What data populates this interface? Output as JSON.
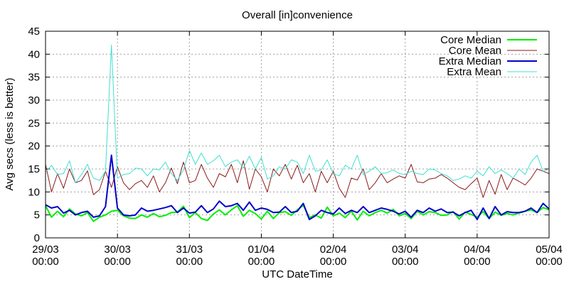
{
  "chart_data": {
    "type": "line",
    "title": "Overall [in]convenience",
    "xlabel": "UTC DateTime",
    "ylabel": "Avg secs (less is better)",
    "ylim": [
      0,
      45
    ],
    "xlim": [
      "2023-03-29T00:00",
      "2023-04-05T00:00"
    ],
    "grid": true,
    "legend_position": "top-right",
    "x_ticks": [
      {
        "line1": "29/03",
        "line2": "00:00"
      },
      {
        "line1": "30/03",
        "line2": "00:00"
      },
      {
        "line1": "31/03",
        "line2": "00:00"
      },
      {
        "line1": "01/04",
        "line2": "00:00"
      },
      {
        "line1": "02/04",
        "line2": "00:00"
      },
      {
        "line1": "03/04",
        "line2": "00:00"
      },
      {
        "line1": "04/04",
        "line2": "00:00"
      },
      {
        "line1": "05/04",
        "line2": "00:00"
      }
    ],
    "y_ticks": [
      "0",
      "5",
      "10",
      "15",
      "20",
      "25",
      "30",
      "35",
      "40",
      "45"
    ],
    "x": [
      "2023-03-29T00:00",
      "2023-03-29T02:00",
      "2023-03-29T04:00",
      "2023-03-29T06:00",
      "2023-03-29T08:00",
      "2023-03-29T10:00",
      "2023-03-29T12:00",
      "2023-03-29T14:00",
      "2023-03-29T16:00",
      "2023-03-29T18:00",
      "2023-03-29T20:00",
      "2023-03-29T22:00",
      "2023-03-30T00:00",
      "2023-03-30T02:00",
      "2023-03-30T04:00",
      "2023-03-30T06:00",
      "2023-03-30T08:00",
      "2023-03-30T10:00",
      "2023-03-30T12:00",
      "2023-03-30T14:00",
      "2023-03-30T16:00",
      "2023-03-30T18:00",
      "2023-03-30T20:00",
      "2023-03-30T22:00",
      "2023-03-31T00:00",
      "2023-03-31T02:00",
      "2023-03-31T04:00",
      "2023-03-31T06:00",
      "2023-03-31T08:00",
      "2023-03-31T10:00",
      "2023-03-31T12:00",
      "2023-03-31T14:00",
      "2023-03-31T16:00",
      "2023-03-31T18:00",
      "2023-03-31T20:00",
      "2023-03-31T22:00",
      "2023-04-01T00:00",
      "2023-04-01T02:00",
      "2023-04-01T04:00",
      "2023-04-01T06:00",
      "2023-04-01T08:00",
      "2023-04-01T10:00",
      "2023-04-01T12:00",
      "2023-04-01T14:00",
      "2023-04-01T16:00",
      "2023-04-01T18:00",
      "2023-04-01T20:00",
      "2023-04-01T22:00",
      "2023-04-02T00:00",
      "2023-04-02T02:00",
      "2023-04-02T04:00",
      "2023-04-02T06:00",
      "2023-04-02T08:00",
      "2023-04-02T10:00",
      "2023-04-02T12:00",
      "2023-04-02T14:00",
      "2023-04-02T16:00",
      "2023-04-02T18:00",
      "2023-04-02T20:00",
      "2023-04-02T22:00",
      "2023-04-03T00:00",
      "2023-04-03T02:00",
      "2023-04-03T04:00",
      "2023-04-03T06:00",
      "2023-04-03T08:00",
      "2023-04-03T10:00",
      "2023-04-03T12:00",
      "2023-04-03T14:00",
      "2023-04-03T16:00",
      "2023-04-03T18:00",
      "2023-04-03T20:00",
      "2023-04-03T22:00",
      "2023-04-04T00:00",
      "2023-04-04T02:00",
      "2023-04-04T04:00",
      "2023-04-04T06:00",
      "2023-04-04T08:00",
      "2023-04-04T10:00",
      "2023-04-04T12:00",
      "2023-04-04T14:00",
      "2023-04-04T16:00",
      "2023-04-04T18:00",
      "2023-04-04T20:00",
      "2023-04-04T22:00",
      "2023-04-05T00:00"
    ],
    "series": [
      {
        "name": "Core Median",
        "color": "#00ee00",
        "values": [
          7.0,
          4.5,
          5.8,
          4.6,
          6.3,
          5.2,
          4.8,
          5.5,
          3.6,
          4.5,
          5.0,
          5.8,
          6.0,
          4.8,
          4.3,
          4.2,
          5.0,
          4.5,
          5.3,
          4.6,
          4.9,
          5.5,
          5.6,
          6.9,
          4.4,
          5.5,
          4.2,
          3.8,
          5.2,
          6.1,
          5.0,
          6.1,
          7.0,
          4.7,
          6.0,
          5.3,
          4.1,
          5.8,
          4.2,
          5.5,
          5.7,
          4.9,
          6.1,
          7.1,
          4.4,
          5.0,
          4.3,
          6.7,
          4.8,
          5.4,
          4.4,
          5.8,
          3.9,
          5.8,
          4.8,
          5.5,
          6.0,
          5.4,
          6.2,
          4.8,
          5.3,
          4.2,
          5.8,
          5.0,
          5.7,
          5.5,
          4.9,
          5.0,
          5.7,
          4.1,
          5.6,
          5.1,
          4.5,
          5.7,
          4.2,
          5.6,
          4.9,
          5.3,
          5.0,
          5.4,
          5.8,
          6.1,
          5.5,
          6.6,
          6.1
        ]
      },
      {
        "name": "Core Mean",
        "color": "#8b1a1a",
        "values": [
          16.0,
          10.0,
          14.0,
          10.8,
          15.0,
          12.0,
          12.5,
          14.6,
          9.4,
          10.5,
          14.5,
          11.0,
          15.5,
          12.0,
          10.5,
          11.8,
          12.5,
          11.0,
          13.5,
          10.0,
          12.0,
          15.2,
          11.8,
          16.5,
          12.0,
          12.5,
          16.0,
          13.0,
          11.0,
          14.0,
          13.3,
          16.0,
          12.0,
          16.8,
          10.6,
          15.0,
          13.3,
          10.0,
          15.0,
          13.5,
          16.0,
          12.8,
          15.8,
          12.0,
          14.0,
          10.0,
          14.5,
          12.0,
          14.5,
          10.8,
          8.8,
          13.0,
          12.6,
          15.0,
          10.5,
          12.0,
          14.0,
          12.0,
          12.8,
          13.5,
          13.0,
          16.0,
          12.2,
          12.0,
          12.8,
          13.0,
          13.8,
          13.0,
          12.0,
          11.0,
          10.5,
          11.8,
          13.0,
          8.8,
          12.5,
          9.5,
          13.8,
          10.5,
          13.0,
          12.3,
          11.5,
          13.0,
          15.0,
          14.5,
          14.0
        ]
      },
      {
        "name": "Extra Median",
        "color": "#0000cc",
        "values": [
          7.2,
          6.5,
          6.8,
          5.4,
          6.0,
          5.0,
          5.5,
          5.8,
          4.5,
          4.8,
          6.8,
          18.0,
          6.5,
          5.0,
          4.8,
          5.0,
          6.5,
          5.8,
          6.0,
          6.3,
          6.6,
          7.0,
          5.5,
          6.5,
          5.4,
          5.6,
          7.0,
          5.5,
          6.3,
          8.0,
          6.8,
          7.0,
          7.5,
          6.0,
          7.8,
          6.0,
          6.5,
          6.2,
          5.5,
          5.6,
          6.8,
          5.5,
          5.8,
          7.5,
          4.0,
          4.8,
          6.0,
          5.5,
          5.2,
          6.5,
          5.3,
          6.0,
          5.5,
          6.8,
          5.5,
          6.0,
          6.5,
          6.2,
          5.8,
          5.2,
          5.8,
          4.5,
          6.0,
          5.5,
          6.5,
          5.8,
          6.3,
          5.5,
          5.6,
          4.8,
          5.5,
          6.0,
          4.0,
          6.5,
          4.2,
          6.8,
          5.0,
          5.7,
          5.5,
          5.5,
          5.8,
          6.5,
          5.5,
          7.5,
          6.3
        ]
      },
      {
        "name": "Extra Mean",
        "color": "#40e0d0",
        "values": [
          14.3,
          15.8,
          13.8,
          14.0,
          16.8,
          12.0,
          13.8,
          16.0,
          13.0,
          12.5,
          14.5,
          42.0,
          13.0,
          13.8,
          14.0,
          15.2,
          15.0,
          13.5,
          15.0,
          14.8,
          16.5,
          14.0,
          12.5,
          14.8,
          19.0,
          16.0,
          18.5,
          16.0,
          16.8,
          18.0,
          15.5,
          16.5,
          17.0,
          15.2,
          17.8,
          15.0,
          17.5,
          12.8,
          13.5,
          15.5,
          15.0,
          17.0,
          16.5,
          14.0,
          18.0,
          14.5,
          14.8,
          17.0,
          14.0,
          13.5,
          15.8,
          15.0,
          18.0,
          13.8,
          14.5,
          15.5,
          14.0,
          14.2,
          14.8,
          14.0,
          13.8,
          14.5,
          14.0,
          13.8,
          15.0,
          14.8,
          14.0,
          13.5,
          12.5,
          12.8,
          13.5,
          13.0,
          14.5,
          13.5,
          15.5,
          14.0,
          14.8,
          14.0,
          13.0,
          15.0,
          13.8,
          16.5,
          18.0,
          14.5,
          15.0
        ]
      }
    ]
  }
}
